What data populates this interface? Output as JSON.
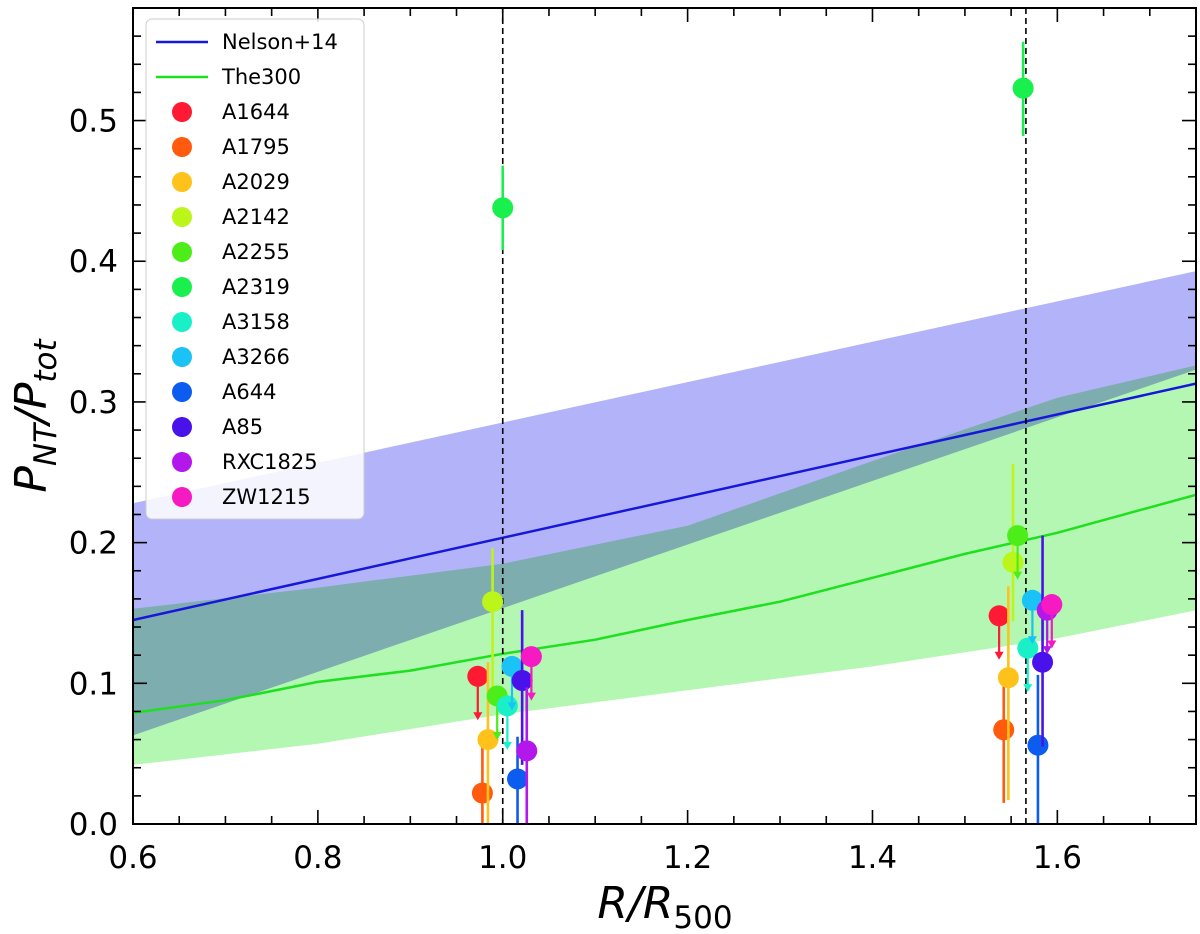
{
  "chart_data": {
    "type": "scatter",
    "xlabel": "R/R500",
    "xlabel_parts": {
      "main": "R/R",
      "sub": "500"
    },
    "ylabel": "PNT/Ptot",
    "ylabel_parts": {
      "p1": "P",
      "s1": "NT",
      "mid": "/P",
      "s2": "tot"
    },
    "xlim": [
      0.6,
      1.75
    ],
    "ylim": [
      0.0,
      0.58
    ],
    "xticks": [
      "0.6",
      "0.8",
      "1.0",
      "1.2",
      "1.4",
      "1.6"
    ],
    "yticks": [
      "0.0",
      "0.1",
      "0.2",
      "0.3",
      "0.4",
      "0.5"
    ],
    "vlines": [
      1.0,
      1.566
    ],
    "bands": [
      {
        "name": "Nelson+14 band",
        "color": "#b3b3fa",
        "x": [
          0.6,
          1.75
        ],
        "lower": [
          0.063,
          0.323
        ],
        "upper": [
          0.228,
          0.393
        ]
      },
      {
        "name": "The300 band",
        "color": "#b3f7b3",
        "x": [
          0.6,
          0.8,
          1.0,
          1.2,
          1.4,
          1.6,
          1.75
        ],
        "lower": [
          0.042,
          0.057,
          0.078,
          0.095,
          0.112,
          0.132,
          0.152
        ],
        "upper": [
          0.153,
          0.168,
          0.185,
          0.212,
          0.258,
          0.303,
          0.326
        ]
      }
    ],
    "lines": [
      {
        "name": "Nelson+14",
        "color": "#1717d9",
        "x": [
          0.6,
          1.75
        ],
        "y": [
          0.145,
          0.313
        ]
      },
      {
        "name": "The300",
        "color": "#1ee01e",
        "x": [
          0.6,
          0.7,
          0.8,
          0.9,
          1.0,
          1.1,
          1.2,
          1.3,
          1.4,
          1.5,
          1.6,
          1.7,
          1.75
        ],
        "y": [
          0.079,
          0.088,
          0.101,
          0.109,
          0.121,
          0.131,
          0.145,
          0.158,
          0.175,
          0.192,
          0.207,
          0.225,
          0.234
        ]
      }
    ],
    "series": [
      {
        "name": "A1644",
        "color": "#ff1a33",
        "points": [
          {
            "x": 0.973,
            "y": 0.105,
            "upper_limit": true
          },
          {
            "x": 1.537,
            "y": 0.148,
            "upper_limit": true
          }
        ]
      },
      {
        "name": "A1795",
        "color": "#ff5a0d",
        "points": [
          {
            "x": 0.978,
            "y": 0.022,
            "err_lo": 0.05,
            "err_hi": 0.035
          },
          {
            "x": 1.542,
            "y": 0.067,
            "err_lo": 0.052,
            "err_hi": 0.04
          }
        ]
      },
      {
        "name": "A2029",
        "color": "#ffc21a",
        "points": [
          {
            "x": 0.984,
            "y": 0.06,
            "err_lo": 0.06,
            "err_hi": 0.055
          },
          {
            "x": 1.547,
            "y": 0.104,
            "err_lo": 0.087,
            "err_hi": 0.065
          }
        ]
      },
      {
        "name": "A2142",
        "color": "#bbf51a",
        "points": [
          {
            "x": 0.989,
            "y": 0.158,
            "err_lo": 0.065,
            "err_hi": 0.038
          },
          {
            "x": 1.552,
            "y": 0.186,
            "err_lo": 0.042,
            "err_hi": 0.07
          }
        ]
      },
      {
        "name": "A2255",
        "color": "#4ded1a",
        "points": [
          {
            "x": 0.994,
            "y": 0.091,
            "upper_limit": true
          },
          {
            "x": 1.557,
            "y": 0.205,
            "upper_limit": true
          }
        ]
      },
      {
        "name": "A2319",
        "color": "#1af04d",
        "points": [
          {
            "x": 1.0,
            "y": 0.438,
            "err_lo": 0.03,
            "err_hi": 0.03
          },
          {
            "x": 1.563,
            "y": 0.523,
            "err_lo": 0.034,
            "err_hi": 0.033
          }
        ]
      },
      {
        "name": "A3158",
        "color": "#1af0c8",
        "points": [
          {
            "x": 1.005,
            "y": 0.084,
            "upper_limit": true
          },
          {
            "x": 1.568,
            "y": 0.125,
            "upper_limit": true
          }
        ]
      },
      {
        "name": "A3266",
        "color": "#1ac2f5",
        "points": [
          {
            "x": 1.01,
            "y": 0.112,
            "upper_limit": true
          },
          {
            "x": 1.573,
            "y": 0.159,
            "upper_limit": true
          }
        ]
      },
      {
        "name": "A644",
        "color": "#0d5cf0",
        "points": [
          {
            "x": 1.016,
            "y": 0.032,
            "err_lo": 0.04,
            "err_hi": 0.03
          },
          {
            "x": 1.579,
            "y": 0.056,
            "err_lo": 0.06,
            "err_hi": 0.05
          }
        ]
      },
      {
        "name": "A85",
        "color": "#4a12eb",
        "points": [
          {
            "x": 1.021,
            "y": 0.102,
            "err_lo": 0.06,
            "err_hi": 0.05
          },
          {
            "x": 1.584,
            "y": 0.115,
            "err_lo": 0.06,
            "err_hi": 0.09
          }
        ]
      },
      {
        "name": "RXC1825",
        "color": "#b317eb",
        "points": [
          {
            "x": 1.026,
            "y": 0.052,
            "err_lo": 0.06,
            "err_hi": 0.045
          },
          {
            "x": 1.589,
            "y": 0.152,
            "upper_limit": true
          }
        ]
      },
      {
        "name": "ZW1215",
        "color": "#f51ac2",
        "points": [
          {
            "x": 1.031,
            "y": 0.119,
            "upper_limit": true
          },
          {
            "x": 1.594,
            "y": 0.156,
            "upper_limit": true
          }
        ]
      }
    ],
    "legend": {
      "placement": "top-left",
      "lines": [
        "Nelson+14",
        "The300"
      ],
      "markers": [
        "A1644",
        "A1795",
        "A2029",
        "A2142",
        "A2255",
        "A2319",
        "A3158",
        "A3266",
        "A644",
        "A85",
        "RXC1825",
        "ZW1215"
      ]
    }
  }
}
